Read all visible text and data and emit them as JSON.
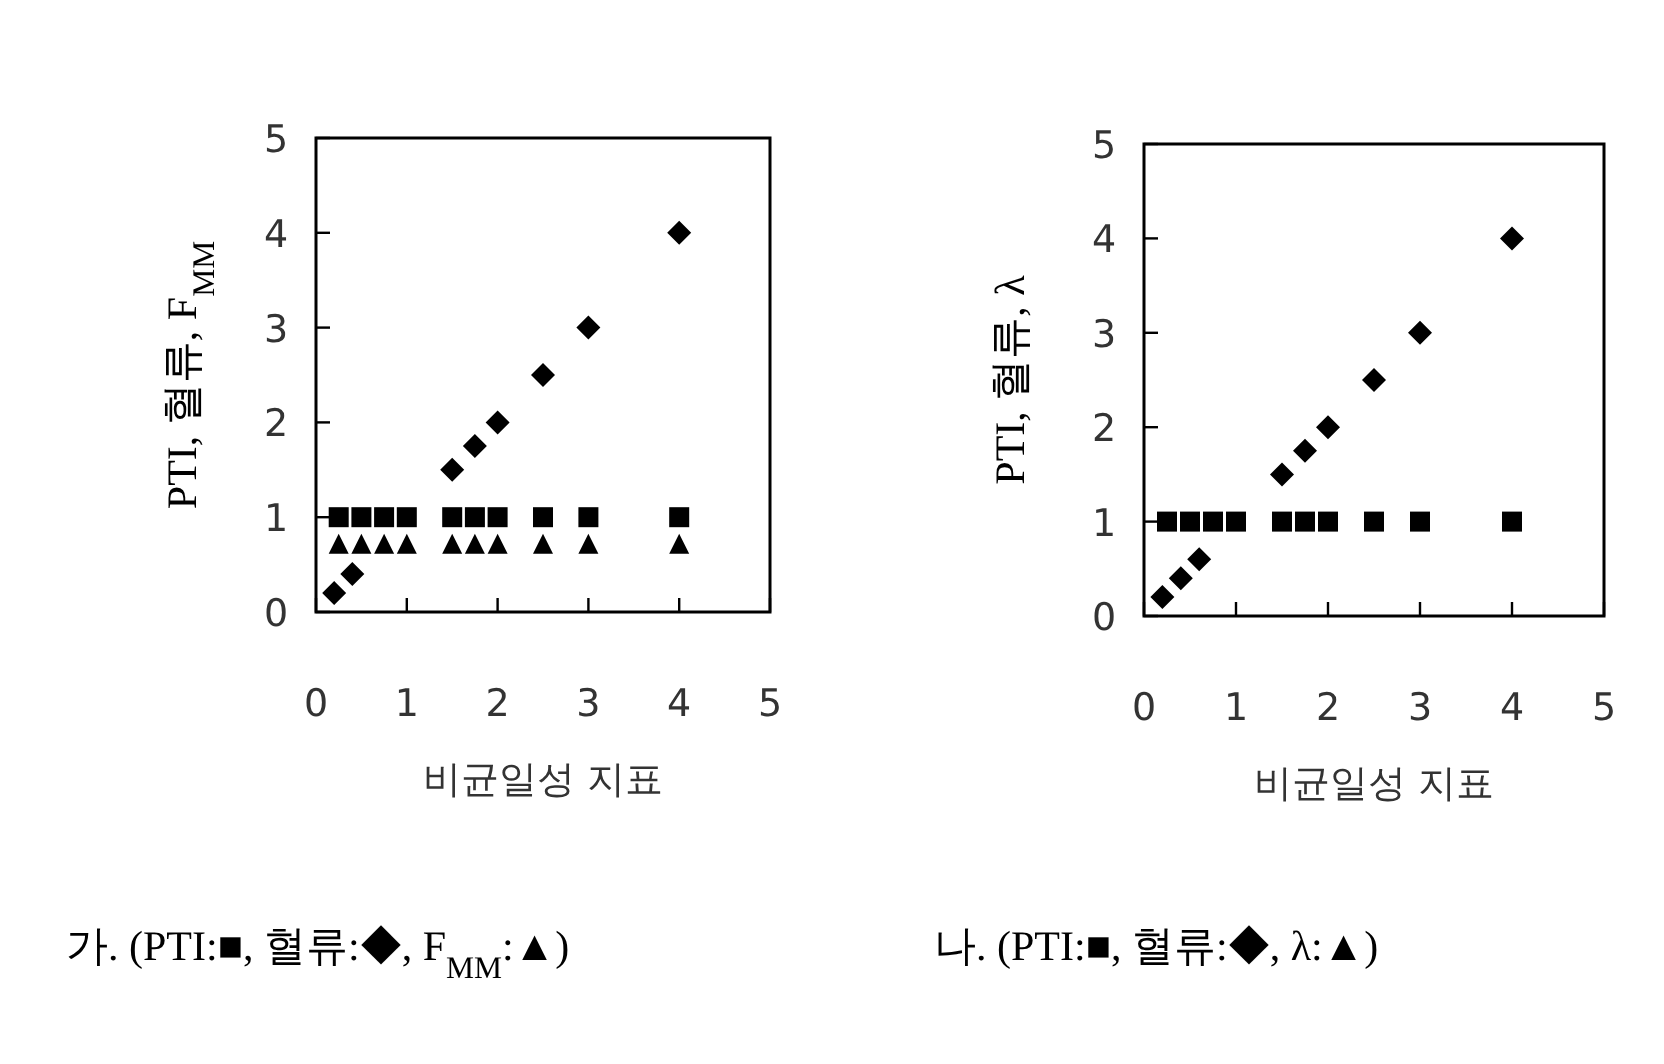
{
  "chart_data": [
    {
      "type": "scatter",
      "xlabel": "비균일성 지표",
      "ylabel": "PTI, 혈류, F$_{MM}$",
      "xlim": [
        0,
        5
      ],
      "ylim": [
        0,
        5
      ],
      "xticks": [
        0,
        1,
        2,
        3,
        4,
        5
      ],
      "yticks": [
        0,
        1,
        2,
        3,
        4,
        5
      ],
      "grid": false,
      "x": [
        0.25,
        0.5,
        0.75,
        1.0,
        1.5,
        1.75,
        2,
        2.5,
        3,
        4
      ],
      "series": [
        {
          "marker": "square",
          "color": "#000000",
          "values": [
            1,
            1,
            1,
            1,
            1,
            1,
            1,
            1,
            1,
            1
          ]
        },
        {
          "marker": "triangle",
          "color": "#000000",
          "values": [
            0.7,
            0.7,
            0.7,
            0.7,
            0.7,
            0.7,
            0.7,
            0.7,
            0.7,
            0.7
          ]
        },
        {
          "marker": "diamond",
          "color": "#000000",
          "x": [
            0.2,
            0.4,
            1.5,
            1.75,
            2,
            2.5,
            3,
            4
          ],
          "values": [
            0.2,
            0.4,
            1.5,
            1.75,
            2,
            2.5,
            3,
            4
          ]
        }
      ],
      "annotations": [
        "가. (PTI:■, 혈류:◆, F$_{MM}$:▲)"
      ]
    },
    {
      "type": "scatter",
      "xlabel": "비균일성 지표",
      "ylabel": "PTI, 혈류, λ",
      "xlim": [
        0,
        5
      ],
      "ylim": [
        0,
        5
      ],
      "xticks": [
        0,
        1,
        2,
        3,
        4,
        5
      ],
      "yticks": [
        0,
        1,
        2,
        3,
        4,
        5
      ],
      "grid": false,
      "x": [
        0.25,
        0.5,
        0.75,
        1.0,
        1.5,
        1.75,
        2,
        2.5,
        3,
        4
      ],
      "series": [
        {
          "marker": "square",
          "color": "#000000",
          "values": [
            1,
            1,
            1,
            1,
            1,
            1,
            1,
            1,
            1,
            1
          ]
        },
        {
          "marker": "diamond",
          "color": "#000000",
          "x": [
            0.2,
            0.4,
            0.6,
            1.5,
            1.75,
            2,
            2.5,
            3,
            4
          ],
          "values": [
            0.2,
            0.4,
            0.6,
            1.5,
            1.75,
            2,
            2.5,
            3,
            4
          ]
        }
      ],
      "annotations": [
        "나. (PTI:■, 혈류:◆, λ:▲)"
      ]
    }
  ]
}
